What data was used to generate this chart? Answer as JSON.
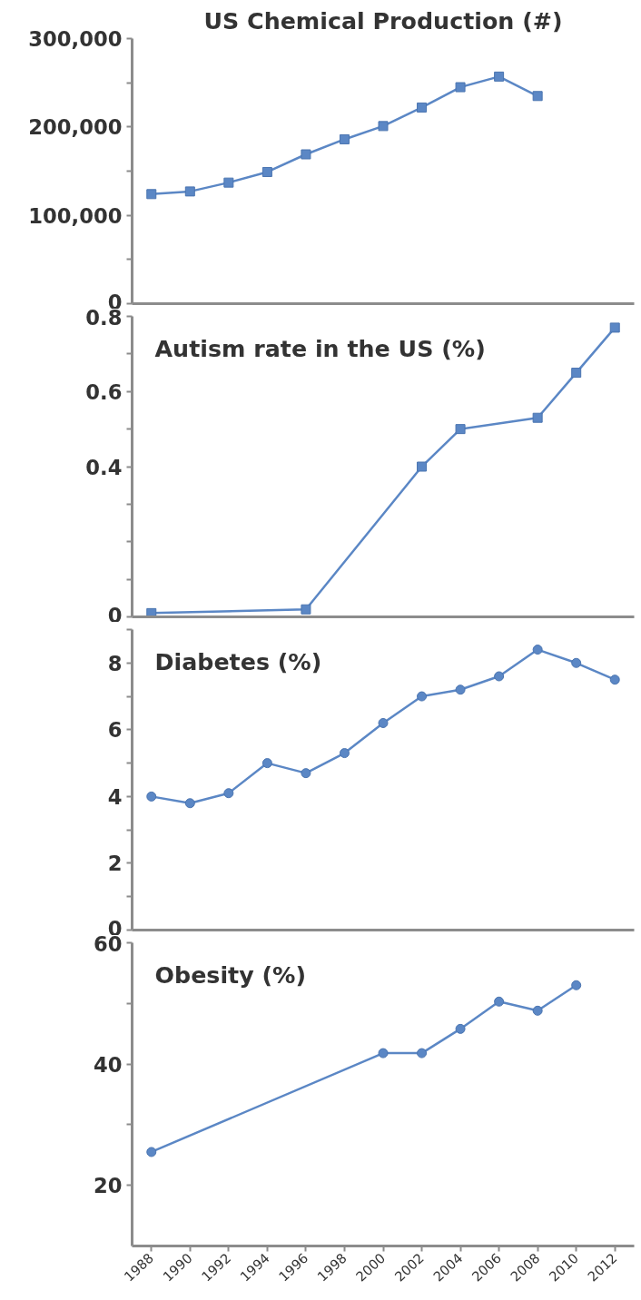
{
  "chart_data": [
    {
      "type": "line",
      "title": "US Chemical Production (#)",
      "marker": "square",
      "line_style": "solid",
      "grid": false,
      "tick_labels": "y",
      "x": [
        1988,
        1990,
        1992,
        1994,
        1996,
        1998,
        2000,
        2002,
        2004,
        2006,
        2008
      ],
      "series": [
        {
          "color": "#5b87c5",
          "values": [
            124000,
            127000,
            137000,
            149000,
            169000,
            186000,
            201000,
            222000,
            245000,
            257000,
            235000
          ]
        }
      ],
      "xlim": [
        1987,
        2013
      ],
      "ylim": [
        0,
        300000
      ],
      "yticks": [
        {
          "value": 0,
          "label": "0"
        },
        {
          "value": 50000,
          "label": null
        },
        {
          "value": 100000,
          "label": "100,000"
        },
        {
          "value": 150000,
          "label": null
        },
        {
          "value": 200000,
          "label": "200,000"
        },
        {
          "value": 250000,
          "label": null
        },
        {
          "value": 300000,
          "label": "300,000"
        }
      ]
    },
    {
      "type": "line",
      "title": "Autism rate in the US (%)",
      "marker": "square",
      "line_style": "solid",
      "grid": false,
      "tick_labels": "y",
      "x": [
        1988,
        1996,
        2002,
        2004,
        2008,
        2010,
        2012
      ],
      "series": [
        {
          "color": "#5b87c5",
          "values": [
            0.01,
            0.02,
            0.4,
            0.5,
            0.53,
            0.65,
            0.77
          ]
        }
      ],
      "xlim": [
        1987,
        2013
      ],
      "ylim": [
        0,
        0.8
      ],
      "yticks": [
        0,
        {
          "value": 0.1,
          "label": null
        },
        {
          "value": 0.2,
          "label": null
        },
        {
          "value": 0.3,
          "label": null
        },
        0.4,
        {
          "value": 0.5,
          "label": null
        },
        0.6,
        {
          "value": 0.7,
          "label": null
        },
        0.8
      ]
    },
    {
      "type": "line",
      "title": "Diabetes (%)",
      "marker": "circle",
      "line_style": "solid",
      "grid": false,
      "tick_labels": "y",
      "x": [
        1988,
        1990,
        1992,
        1994,
        1996,
        1998,
        2000,
        2002,
        2004,
        2006,
        2008,
        2010,
        2012
      ],
      "series": [
        {
          "color": "#5b87c5",
          "values": [
            4.0,
            3.8,
            4.1,
            5.0,
            4.7,
            5.3,
            6.2,
            7.0,
            7.2,
            7.6,
            8.4,
            8.0,
            7.5
          ]
        }
      ],
      "xlim": [
        1987,
        2013
      ],
      "ylim": [
        0,
        9
      ],
      "yticks": [
        0,
        {
          "value": 1,
          "label": null
        },
        2,
        {
          "value": 3,
          "label": null
        },
        4,
        {
          "value": 5,
          "label": null
        },
        6,
        {
          "value": 7,
          "label": null
        },
        8,
        {
          "value": 9,
          "label": null
        }
      ]
    },
    {
      "type": "line",
      "title": "Obesity (%)",
      "marker": "circle",
      "line_style": "solid",
      "grid": false,
      "x": [
        1988,
        2000,
        2002,
        2004,
        2006,
        2008,
        2010
      ],
      "series": [
        {
          "color": "#5b87c5",
          "values": [
            25.5,
            41.8,
            41.8,
            45.8,
            50.3,
            48.8,
            53.0
          ]
        }
      ],
      "xlim": [
        1987,
        2013
      ],
      "ylim": [
        10,
        60
      ],
      "yticks": [
        20,
        {
          "value": 30,
          "label": null
        },
        40,
        {
          "value": 50,
          "label": null
        },
        60
      ],
      "xticks": [
        1988,
        1990,
        1992,
        1994,
        1996,
        1998,
        2000,
        2002,
        2004,
        2006,
        2008,
        2010,
        2012
      ]
    }
  ]
}
